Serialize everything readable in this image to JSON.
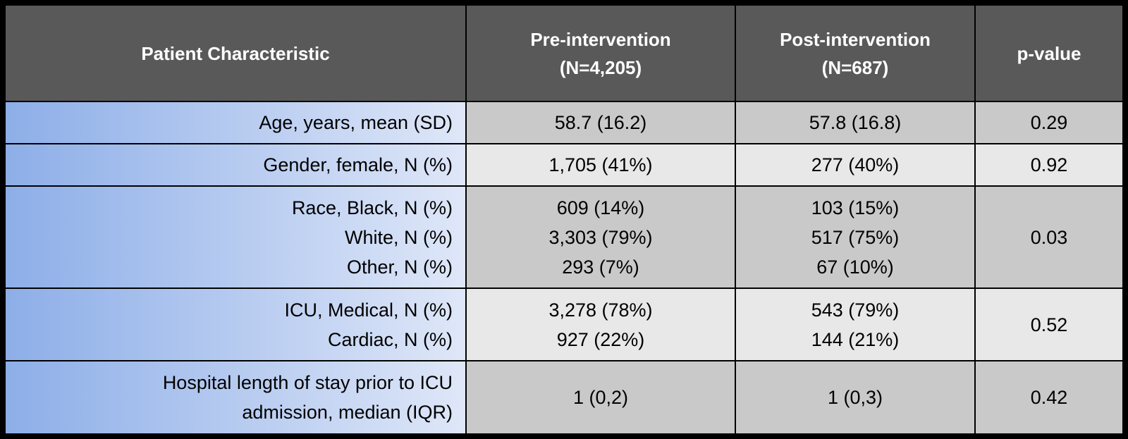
{
  "table": {
    "header": [
      [
        "Patient Characteristic"
      ],
      [
        "Pre-intervention",
        "(N=4,205)"
      ],
      [
        "Post-intervention",
        "(N=687)"
      ],
      [
        "p-value"
      ]
    ],
    "rows": [
      [
        [
          "Age, years, mean (SD)"
        ],
        [
          "58.7 (16.2)"
        ],
        [
          "57.8 (16.8)"
        ],
        [
          "0.29"
        ]
      ],
      [
        [
          "Gender, female, N (%)"
        ],
        [
          "1,705 (41%)"
        ],
        [
          "277 (40%)"
        ],
        [
          "0.92"
        ]
      ],
      [
        [
          "Race, Black, N (%)",
          "White, N (%)",
          "Other, N (%)"
        ],
        [
          "609 (14%)",
          "3,303 (79%)",
          "293 (7%)"
        ],
        [
          "103 (15%)",
          "517 (75%)",
          "67 (10%)"
        ],
        [
          "0.03"
        ]
      ],
      [
        [
          "ICU, Medical, N (%)",
          "Cardiac, N (%)"
        ],
        [
          "3,278 (78%)",
          "927 (22%)"
        ],
        [
          "543 (79%)",
          "144 (21%)"
        ],
        [
          "0.52"
        ]
      ],
      [
        [
          "Hospital length of stay prior to ICU",
          "admission, median (IQR)"
        ],
        [
          "1 (0,2)"
        ],
        [
          "1 (0,3)"
        ],
        [
          "0.42"
        ]
      ]
    ]
  }
}
